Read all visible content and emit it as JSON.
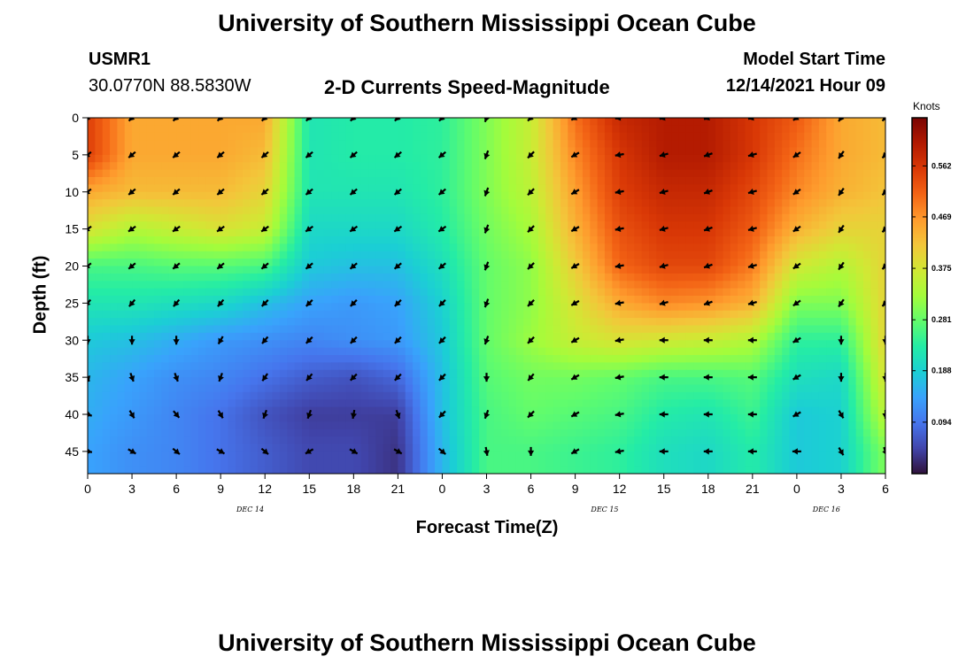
{
  "header": {
    "title": "University of Southern Mississippi Ocean Cube",
    "station": "USMR1",
    "coords": "30.0770N  88.5830W",
    "plot_title": "2-D Currents Speed-Magnitude",
    "model_start_label": "Model Start Time",
    "model_start_value": "12/14/2021 Hour 09"
  },
  "footer": {
    "title": "University of Southern Mississippi Ocean Cube"
  },
  "colors": {
    "colormap": [
      "#30123b",
      "#4145ab",
      "#4675ed",
      "#39a2fc",
      "#1bcfd4",
      "#24eca6",
      "#61fc6c",
      "#a4fc3b",
      "#d1e834",
      "#f3c63a",
      "#fe9b2d",
      "#f36315",
      "#d93806",
      "#b11901",
      "#7a0402"
    ]
  },
  "chart_data": {
    "type": "heatmap",
    "title": "2-D Currents Speed-Magnitude",
    "xlabel": "Forecast Time(Z)",
    "ylabel": "Depth (ft)",
    "x_hours": [
      0,
      3,
      6,
      9,
      12,
      15,
      18,
      21,
      24,
      27,
      30,
      33,
      36,
      39,
      42,
      45,
      48,
      51,
      54
    ],
    "x_tick_labels": [
      "0",
      "3",
      "6",
      "9",
      "12",
      "15",
      "18",
      "21",
      "0",
      "3",
      "6",
      "9",
      "12",
      "15",
      "18",
      "21",
      "0",
      "3",
      "6"
    ],
    "date_labels": [
      {
        "label": "DEC 14",
        "hour": 11
      },
      {
        "label": "DEC 15",
        "hour": 35
      },
      {
        "label": "DEC 16",
        "hour": 50
      }
    ],
    "y_depths_ft": [
      0,
      5,
      10,
      15,
      20,
      25,
      30,
      35,
      40,
      45
    ],
    "xlim": [
      0,
      54
    ],
    "ylim": [
      0,
      48
    ],
    "colorbar": {
      "label": "Knots",
      "ticks": [
        0.094,
        0.188,
        0.281,
        0.375,
        0.469,
        0.562
      ],
      "range": [
        0.0,
        0.65
      ]
    },
    "speed_knots": [
      [
        0.55,
        0.45,
        0.45,
        0.45,
        0.45,
        0.22,
        0.23,
        0.23,
        0.24,
        0.3,
        0.36,
        0.5,
        0.58,
        0.6,
        0.6,
        0.56,
        0.52,
        0.45,
        0.43
      ],
      [
        0.55,
        0.45,
        0.45,
        0.45,
        0.43,
        0.22,
        0.23,
        0.23,
        0.24,
        0.3,
        0.36,
        0.48,
        0.56,
        0.6,
        0.6,
        0.56,
        0.5,
        0.45,
        0.43
      ],
      [
        0.45,
        0.43,
        0.43,
        0.43,
        0.4,
        0.22,
        0.22,
        0.22,
        0.24,
        0.3,
        0.35,
        0.46,
        0.55,
        0.58,
        0.58,
        0.54,
        0.48,
        0.44,
        0.42
      ],
      [
        0.38,
        0.34,
        0.36,
        0.38,
        0.36,
        0.2,
        0.2,
        0.2,
        0.23,
        0.29,
        0.33,
        0.44,
        0.53,
        0.56,
        0.56,
        0.52,
        0.44,
        0.4,
        0.4
      ],
      [
        0.26,
        0.26,
        0.27,
        0.27,
        0.26,
        0.18,
        0.17,
        0.17,
        0.21,
        0.28,
        0.31,
        0.41,
        0.51,
        0.54,
        0.54,
        0.49,
        0.37,
        0.34,
        0.4
      ],
      [
        0.22,
        0.22,
        0.21,
        0.2,
        0.17,
        0.14,
        0.13,
        0.14,
        0.19,
        0.28,
        0.31,
        0.38,
        0.45,
        0.48,
        0.47,
        0.44,
        0.3,
        0.3,
        0.4
      ],
      [
        0.18,
        0.17,
        0.15,
        0.13,
        0.12,
        0.11,
        0.12,
        0.13,
        0.18,
        0.28,
        0.32,
        0.36,
        0.38,
        0.37,
        0.36,
        0.34,
        0.24,
        0.24,
        0.4
      ],
      [
        0.16,
        0.14,
        0.12,
        0.11,
        0.09,
        0.07,
        0.06,
        0.08,
        0.17,
        0.27,
        0.29,
        0.29,
        0.28,
        0.26,
        0.26,
        0.27,
        0.21,
        0.2,
        0.38
      ],
      [
        0.15,
        0.13,
        0.11,
        0.09,
        0.06,
        0.04,
        0.04,
        0.04,
        0.17,
        0.26,
        0.28,
        0.27,
        0.26,
        0.23,
        0.22,
        0.25,
        0.18,
        0.19,
        0.35
      ],
      [
        0.14,
        0.12,
        0.11,
        0.09,
        0.07,
        0.05,
        0.05,
        0.03,
        0.16,
        0.26,
        0.26,
        0.25,
        0.24,
        0.21,
        0.2,
        0.23,
        0.18,
        0.19,
        0.3
      ]
    ],
    "direction_deg": [
      [
        225,
        225,
        225,
        225,
        225,
        225,
        225,
        225,
        225,
        200,
        225,
        240,
        260,
        255,
        250,
        255,
        235,
        215,
        225
      ],
      [
        230,
        230,
        230,
        230,
        230,
        230,
        230,
        230,
        230,
        200,
        225,
        240,
        260,
        255,
        250,
        255,
        235,
        215,
        225
      ],
      [
        230,
        230,
        230,
        230,
        230,
        230,
        230,
        230,
        230,
        200,
        225,
        240,
        260,
        255,
        250,
        255,
        235,
        215,
        225
      ],
      [
        235,
        235,
        235,
        235,
        235,
        235,
        235,
        235,
        235,
        200,
        225,
        240,
        260,
        255,
        250,
        255,
        235,
        215,
        225
      ],
      [
        230,
        230,
        230,
        230,
        230,
        230,
        230,
        230,
        230,
        200,
        225,
        240,
        260,
        255,
        250,
        255,
        235,
        215,
        225
      ],
      [
        220,
        220,
        220,
        220,
        225,
        225,
        225,
        225,
        225,
        200,
        225,
        240,
        260,
        255,
        250,
        255,
        235,
        215,
        225
      ],
      [
        180,
        180,
        180,
        210,
        220,
        225,
        225,
        225,
        225,
        200,
        225,
        240,
        260,
        270,
        270,
        270,
        240,
        180,
        180
      ],
      [
        160,
        160,
        160,
        200,
        215,
        220,
        225,
        225,
        225,
        180,
        220,
        240,
        260,
        270,
        270,
        270,
        240,
        180,
        180
      ],
      [
        110,
        150,
        140,
        150,
        200,
        200,
        190,
        160,
        225,
        200,
        225,
        240,
        260,
        270,
        270,
        270,
        240,
        150,
        180
      ],
      [
        100,
        120,
        130,
        120,
        130,
        240,
        120,
        120,
        130,
        170,
        180,
        240,
        260,
        270,
        270,
        270,
        270,
        150,
        160
      ]
    ]
  }
}
